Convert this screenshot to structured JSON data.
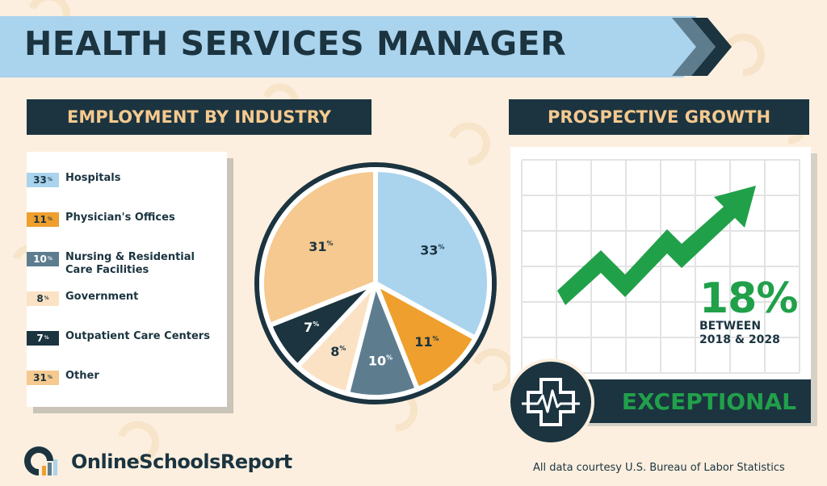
{
  "title": "HEALTH SERVICES MANAGER",
  "employment": {
    "header": "EMPLOYMENT BY INDUSTRY",
    "legend": [
      {
        "value": "33",
        "suffix": "%",
        "label": "Hospitals",
        "color": "#aad3ed",
        "text_color": "#1b3440"
      },
      {
        "value": "11",
        "suffix": "%",
        "label": "Physician's Offices",
        "color": "#ee9f2d",
        "text_color": "#1b3440"
      },
      {
        "value": "10",
        "suffix": "%",
        "label": "Nursing & Residential Care Facilities",
        "color": "#5d7d8f",
        "text_color": "#ffffff"
      },
      {
        "value": "8",
        "suffix": "%",
        "label": "Government",
        "color": "#fbe2c5",
        "text_color": "#1b3440"
      },
      {
        "value": "7",
        "suffix": "%",
        "label": "Outpatient Care Centers",
        "color": "#1b3440",
        "text_color": "#ffffff"
      },
      {
        "value": "31",
        "suffix": "%",
        "label": "Other",
        "color": "#f5c98f",
        "text_color": "#1b3440"
      }
    ]
  },
  "growth": {
    "header": "PROSPECTIVE GROWTH",
    "value": "18%",
    "subtitle_line1": "BETWEEN",
    "subtitle_line2": "2018 & 2028",
    "rating": "EXCEPTIONAL",
    "arrow_color": "#21a04a"
  },
  "footer": {
    "brand": "OnlineSchoolsReport",
    "source": "All data courtesy U.S. Bureau of Labor Statistics"
  },
  "chart_data": {
    "type": "pie",
    "title": "EMPLOYMENT BY INDUSTRY",
    "categories": [
      "Hospitals",
      "Physician's Offices",
      "Nursing & Residential Care Facilities",
      "Government",
      "Outpatient Care Centers",
      "Other"
    ],
    "values": [
      33,
      11,
      10,
      8,
      7,
      31
    ],
    "colors": [
      "#aad3ed",
      "#ee9f2d",
      "#5d7d8f",
      "#fbe2c5",
      "#1b3440",
      "#f5c98f"
    ],
    "label_colors": [
      "#1b3440",
      "#1b3440",
      "#ffffff",
      "#1b3440",
      "#ffffff",
      "#1b3440"
    ],
    "unit": "%",
    "legend": "left"
  }
}
